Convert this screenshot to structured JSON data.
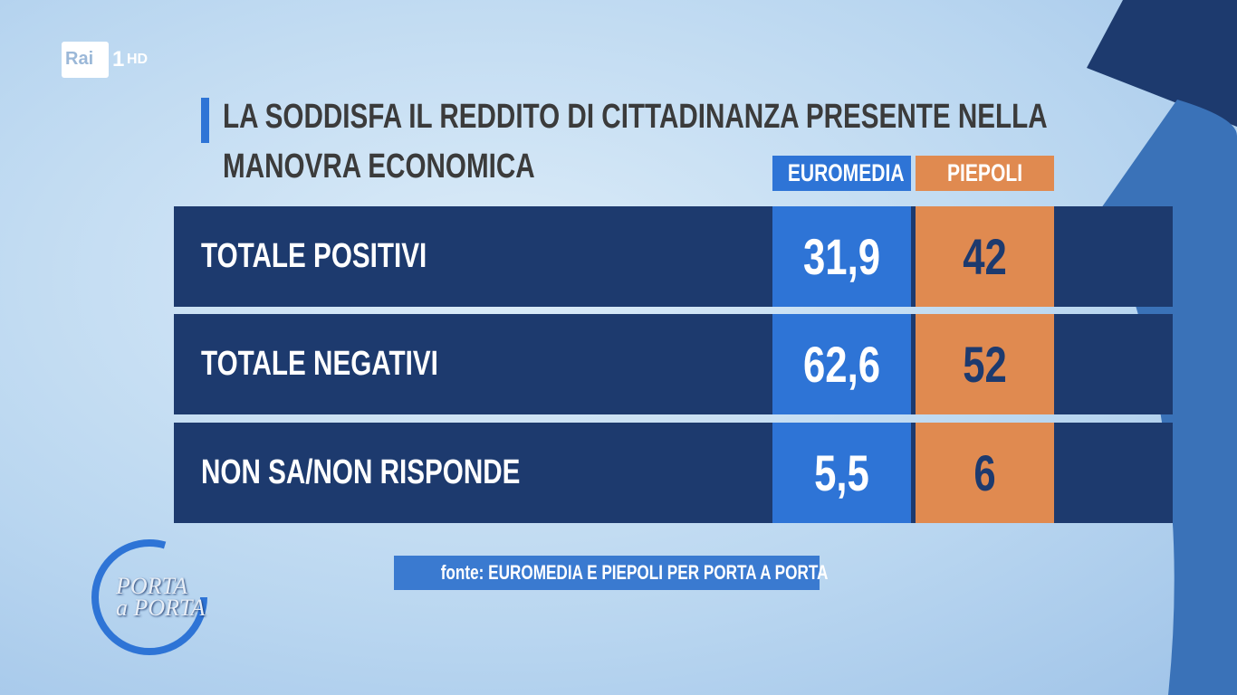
{
  "channel": {
    "name": "Rai",
    "number": "1",
    "quality": "HD"
  },
  "header": {
    "title_lines": [
      "LA SODDISFA IL REDDITO DI CITTADINANZA PRESENTE NELLA",
      "MANOVRA ECONOMICA"
    ]
  },
  "table": {
    "columns": [
      "EUROMEDIA",
      "PIEPOLI"
    ],
    "rows": [
      [
        "TOTALE POSITIVI",
        "31,9",
        "42"
      ],
      [
        "TOTALE NEGATIVI",
        "62,6",
        "52"
      ],
      [
        "NON SA/NON RISPONDE",
        "5,5",
        "6"
      ]
    ]
  },
  "source": "fonte: EUROMEDIA E PIEPOLI PER PORTA A PORTA",
  "show_logo": {
    "line1": "PORTA",
    "line2": "a PORTA"
  }
}
